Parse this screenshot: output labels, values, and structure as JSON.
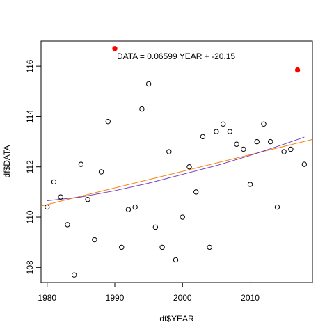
{
  "chart_data": {
    "type": "scatter",
    "title": "",
    "xlabel": "df$YEAR",
    "ylabel": "df$DATA",
    "xlim": [
      1979.1,
      2019.2
    ],
    "ylim": [
      107.4,
      117.0
    ],
    "xticks": [
      1980,
      1990,
      2000,
      2010
    ],
    "yticks": [
      108,
      110,
      112,
      114,
      116
    ],
    "grid": false,
    "annotation": "DATA = 0.06599 YEAR + -20.15",
    "colors": {
      "points": "#000000",
      "highlight": "#ff0000",
      "linear_fit": "#ff7f00",
      "smooth_fit": "#6a3dc8"
    },
    "points": [
      {
        "x": 1980,
        "y": 110.4
      },
      {
        "x": 1981,
        "y": 111.4
      },
      {
        "x": 1982,
        "y": 110.8
      },
      {
        "x": 1983,
        "y": 109.7
      },
      {
        "x": 1984,
        "y": 107.7
      },
      {
        "x": 1985,
        "y": 112.1
      },
      {
        "x": 1986,
        "y": 110.7
      },
      {
        "x": 1987,
        "y": 109.1
      },
      {
        "x": 1988,
        "y": 111.8
      },
      {
        "x": 1989,
        "y": 113.8
      },
      {
        "x": 1991,
        "y": 108.8
      },
      {
        "x": 1992,
        "y": 110.3
      },
      {
        "x": 1993,
        "y": 110.4
      },
      {
        "x": 1994,
        "y": 114.3
      },
      {
        "x": 1995,
        "y": 115.3
      },
      {
        "x": 1996,
        "y": 109.6
      },
      {
        "x": 1997,
        "y": 108.8
      },
      {
        "x": 1998,
        "y": 112.6
      },
      {
        "x": 1999,
        "y": 108.3
      },
      {
        "x": 2000,
        "y": 110.0
      },
      {
        "x": 2001,
        "y": 112.0
      },
      {
        "x": 2002,
        "y": 111.0
      },
      {
        "x": 2003,
        "y": 113.2
      },
      {
        "x": 2004,
        "y": 108.8
      },
      {
        "x": 2005,
        "y": 113.4
      },
      {
        "x": 2006,
        "y": 113.7
      },
      {
        "x": 2007,
        "y": 113.4
      },
      {
        "x": 2008,
        "y": 112.9
      },
      {
        "x": 2009,
        "y": 112.7
      },
      {
        "x": 2010,
        "y": 111.3
      },
      {
        "x": 2011,
        "y": 113.0
      },
      {
        "x": 2012,
        "y": 113.7
      },
      {
        "x": 2013,
        "y": 113.0
      },
      {
        "x": 2014,
        "y": 110.4
      },
      {
        "x": 2015,
        "y": 112.6
      },
      {
        "x": 2016,
        "y": 112.7
      },
      {
        "x": 2018,
        "y": 112.1
      }
    ],
    "highlighted_points": [
      {
        "x": 1990,
        "y": 116.7
      },
      {
        "x": 2017,
        "y": 115.85
      }
    ],
    "linear_fit": {
      "x": [
        1979.1,
        2019.2
      ],
      "y": [
        110.44,
        113.09
      ]
    },
    "smooth_fit": {
      "x": [
        1980,
        1985,
        1990,
        1995,
        2000,
        2005,
        2010,
        2015,
        2018
      ],
      "y": [
        110.65,
        110.8,
        111.05,
        111.35,
        111.7,
        112.05,
        112.45,
        112.9,
        113.18
      ]
    }
  }
}
